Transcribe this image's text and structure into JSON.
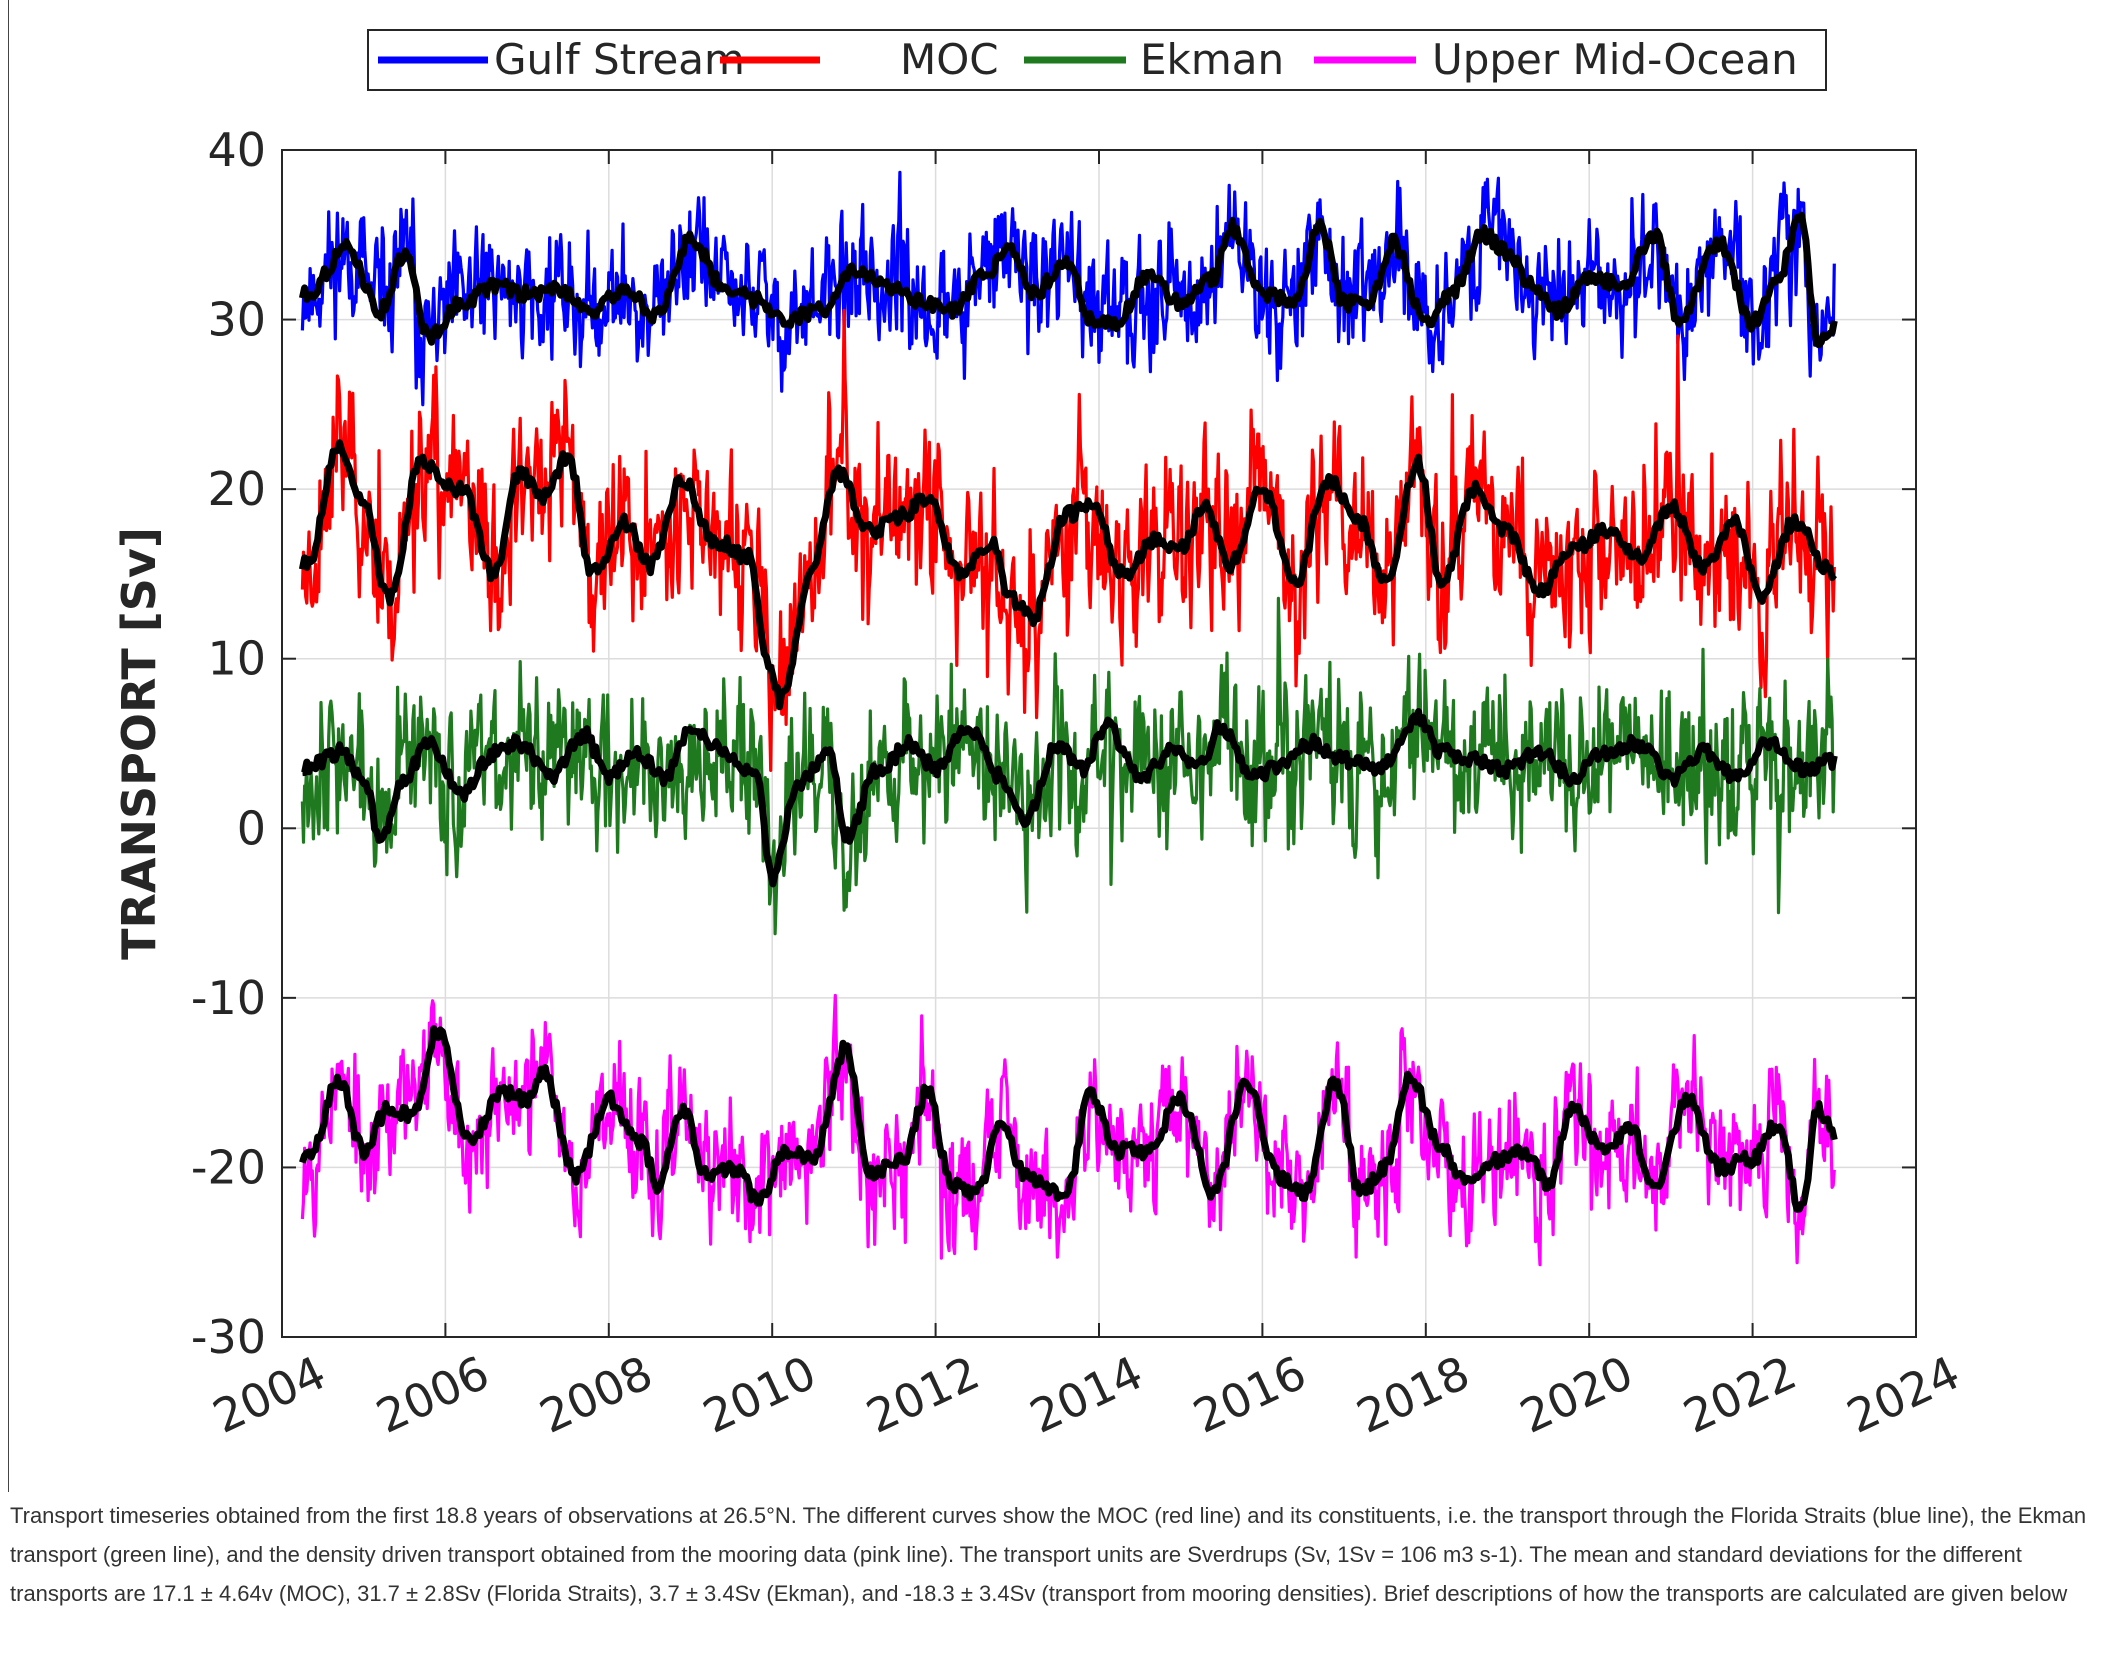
{
  "chart_data": {
    "type": "line",
    "title": "",
    "xlabel": "",
    "ylabel": "TRANSPORT [Sv]",
    "xlim": [
      2004,
      2024
    ],
    "ylim": [
      -30,
      40
    ],
    "xticks": [
      "2004",
      "2006",
      "2008",
      "2010",
      "2012",
      "2014",
      "2016",
      "2018",
      "2020",
      "2022",
      "2024"
    ],
    "yticks": [
      "40",
      "30",
      "20",
      "10",
      "0",
      "-10",
      "-20",
      "-30"
    ],
    "grid": true,
    "legend_position": "top",
    "x_start": 2004.25,
    "x_end": 2023.0,
    "series": [
      {
        "name": "Gulf Stream",
        "color": "#0000ff",
        "noise": 2.6,
        "seed": 11,
        "smooth": [
          [
            2004.3,
            31.5
          ],
          [
            2004.8,
            34.2
          ],
          [
            2005.2,
            30.5
          ],
          [
            2005.5,
            33.8
          ],
          [
            2005.8,
            29.0
          ],
          [
            2006.2,
            31.0
          ],
          [
            2006.6,
            32.0
          ],
          [
            2007.0,
            31.5
          ],
          [
            2007.4,
            31.8
          ],
          [
            2007.8,
            30.5
          ],
          [
            2008.2,
            31.8
          ],
          [
            2008.6,
            30.2
          ],
          [
            2009.0,
            34.8
          ],
          [
            2009.4,
            32.0
          ],
          [
            2009.8,
            31.2
          ],
          [
            2010.2,
            30.0
          ],
          [
            2010.6,
            30.6
          ],
          [
            2011.0,
            32.8
          ],
          [
            2011.4,
            32.0
          ],
          [
            2011.8,
            31.0
          ],
          [
            2012.2,
            30.5
          ],
          [
            2012.6,
            32.5
          ],
          [
            2012.9,
            34.5
          ],
          [
            2013.2,
            31.5
          ],
          [
            2013.6,
            33.5
          ],
          [
            2013.9,
            30.0
          ],
          [
            2014.2,
            29.8
          ],
          [
            2014.6,
            32.5
          ],
          [
            2015.0,
            31.0
          ],
          [
            2015.4,
            32.5
          ],
          [
            2015.6,
            35.5
          ],
          [
            2016.0,
            31.5
          ],
          [
            2016.4,
            31.2
          ],
          [
            2016.7,
            35.5
          ],
          [
            2017.0,
            31.0
          ],
          [
            2017.3,
            30.8
          ],
          [
            2017.6,
            34.5
          ],
          [
            2018.0,
            29.8
          ],
          [
            2018.3,
            31.5
          ],
          [
            2018.7,
            35.0
          ],
          [
            2019.0,
            34.0
          ],
          [
            2019.3,
            32.0
          ],
          [
            2019.6,
            30.5
          ],
          [
            2020.0,
            32.5
          ],
          [
            2020.4,
            32.0
          ],
          [
            2020.8,
            35.0
          ],
          [
            2021.1,
            30.0
          ],
          [
            2021.6,
            34.5
          ],
          [
            2022.0,
            29.8
          ],
          [
            2022.3,
            32.5
          ],
          [
            2022.6,
            36.0
          ],
          [
            2022.8,
            28.5
          ],
          [
            2023.0,
            29.5
          ]
        ]
      },
      {
        "name": "MOC",
        "color": "#ff0000",
        "noise": 3.4,
        "seed": 23,
        "smooth": [
          [
            2004.3,
            15.5
          ],
          [
            2004.7,
            22.5
          ],
          [
            2005.0,
            19.0
          ],
          [
            2005.3,
            13.5
          ],
          [
            2005.7,
            21.5
          ],
          [
            2006.2,
            20.0
          ],
          [
            2006.6,
            15.0
          ],
          [
            2006.9,
            21.0
          ],
          [
            2007.2,
            19.5
          ],
          [
            2007.5,
            22.0
          ],
          [
            2007.8,
            15.0
          ],
          [
            2008.2,
            18.0
          ],
          [
            2008.5,
            15.5
          ],
          [
            2008.9,
            20.5
          ],
          [
            2009.3,
            17.0
          ],
          [
            2009.7,
            16.0
          ],
          [
            2010.0,
            9.0
          ],
          [
            2010.1,
            7.5
          ],
          [
            2010.5,
            15.5
          ],
          [
            2010.8,
            21.0
          ],
          [
            2011.2,
            17.5
          ],
          [
            2011.6,
            18.5
          ],
          [
            2011.9,
            19.5
          ],
          [
            2012.3,
            15.0
          ],
          [
            2012.7,
            17.0
          ],
          [
            2012.9,
            13.5
          ],
          [
            2013.2,
            12.5
          ],
          [
            2013.6,
            18.5
          ],
          [
            2013.9,
            19.0
          ],
          [
            2014.3,
            15.0
          ],
          [
            2014.7,
            17.0
          ],
          [
            2015.0,
            16.5
          ],
          [
            2015.3,
            19.0
          ],
          [
            2015.6,
            15.5
          ],
          [
            2016.0,
            20.0
          ],
          [
            2016.4,
            14.5
          ],
          [
            2016.8,
            20.5
          ],
          [
            2017.2,
            18.0
          ],
          [
            2017.5,
            14.5
          ],
          [
            2017.9,
            21.5
          ],
          [
            2018.2,
            14.5
          ],
          [
            2018.6,
            20.0
          ],
          [
            2019.0,
            17.5
          ],
          [
            2019.4,
            14.0
          ],
          [
            2019.8,
            16.5
          ],
          [
            2020.2,
            17.5
          ],
          [
            2020.6,
            16.0
          ],
          [
            2021.0,
            19.0
          ],
          [
            2021.4,
            15.5
          ],
          [
            2021.8,
            18.0
          ],
          [
            2022.1,
            13.5
          ],
          [
            2022.5,
            18.0
          ],
          [
            2023.0,
            15.0
          ]
        ]
      },
      {
        "name": "Ekman",
        "color": "#1f7a1f",
        "noise": 3.2,
        "seed": 37,
        "smooth": [
          [
            2004.3,
            3.5
          ],
          [
            2004.7,
            4.5
          ],
          [
            2005.0,
            3.0
          ],
          [
            2005.2,
            -0.5
          ],
          [
            2005.5,
            3.0
          ],
          [
            2005.8,
            5.0
          ],
          [
            2006.2,
            2.0
          ],
          [
            2006.6,
            4.5
          ],
          [
            2006.9,
            5.0
          ],
          [
            2007.3,
            3.0
          ],
          [
            2007.7,
            5.5
          ],
          [
            2008.0,
            3.0
          ],
          [
            2008.3,
            4.5
          ],
          [
            2008.7,
            3.0
          ],
          [
            2009.0,
            6.0
          ],
          [
            2009.4,
            4.5
          ],
          [
            2009.8,
            3.0
          ],
          [
            2010.0,
            -3.0
          ],
          [
            2010.3,
            2.5
          ],
          [
            2010.7,
            4.5
          ],
          [
            2010.9,
            -0.5
          ],
          [
            2011.3,
            3.5
          ],
          [
            2011.7,
            5.0
          ],
          [
            2012.0,
            3.5
          ],
          [
            2012.4,
            6.0
          ],
          [
            2012.8,
            3.0
          ],
          [
            2013.1,
            0.5
          ],
          [
            2013.5,
            5.0
          ],
          [
            2013.8,
            3.5
          ],
          [
            2014.1,
            6.0
          ],
          [
            2014.5,
            3.0
          ],
          [
            2014.9,
            4.5
          ],
          [
            2015.2,
            3.5
          ],
          [
            2015.5,
            6.0
          ],
          [
            2015.9,
            3.0
          ],
          [
            2016.3,
            4.0
          ],
          [
            2016.6,
            5.0
          ],
          [
            2017.0,
            4.0
          ],
          [
            2017.4,
            3.5
          ],
          [
            2017.9,
            6.5
          ],
          [
            2018.2,
            4.5
          ],
          [
            2018.6,
            4.0
          ],
          [
            2019.0,
            3.5
          ],
          [
            2019.4,
            4.5
          ],
          [
            2019.8,
            3.0
          ],
          [
            2020.2,
            4.5
          ],
          [
            2020.6,
            5.0
          ],
          [
            2021.0,
            3.0
          ],
          [
            2021.4,
            4.5
          ],
          [
            2021.8,
            3.0
          ],
          [
            2022.2,
            5.0
          ],
          [
            2022.6,
            3.5
          ],
          [
            2023.0,
            4.0
          ]
        ]
      },
      {
        "name": "Upper Mid-Ocean",
        "color": "#ff00ff",
        "noise": 2.6,
        "seed": 53,
        "smooth": [
          [
            2004.3,
            -19.5
          ],
          [
            2004.7,
            -15.0
          ],
          [
            2005.0,
            -19.0
          ],
          [
            2005.3,
            -16.5
          ],
          [
            2005.6,
            -17.0
          ],
          [
            2005.9,
            -12.0
          ],
          [
            2006.3,
            -18.5
          ],
          [
            2006.7,
            -15.5
          ],
          [
            2007.0,
            -16.0
          ],
          [
            2007.2,
            -14.5
          ],
          [
            2007.6,
            -20.5
          ],
          [
            2008.0,
            -16.0
          ],
          [
            2008.4,
            -18.5
          ],
          [
            2008.6,
            -21.0
          ],
          [
            2008.9,
            -16.5
          ],
          [
            2009.2,
            -20.5
          ],
          [
            2009.6,
            -20.0
          ],
          [
            2009.8,
            -22.0
          ],
          [
            2010.2,
            -19.0
          ],
          [
            2010.5,
            -19.5
          ],
          [
            2010.9,
            -13.0
          ],
          [
            2011.2,
            -20.5
          ],
          [
            2011.6,
            -19.5
          ],
          [
            2011.9,
            -15.5
          ],
          [
            2012.2,
            -21.0
          ],
          [
            2012.5,
            -21.5
          ],
          [
            2012.8,
            -17.5
          ],
          [
            2013.1,
            -20.5
          ],
          [
            2013.6,
            -21.5
          ],
          [
            2013.9,
            -15.5
          ],
          [
            2014.2,
            -19.0
          ],
          [
            2014.6,
            -19.0
          ],
          [
            2015.0,
            -16.0
          ],
          [
            2015.4,
            -21.5
          ],
          [
            2015.8,
            -15.0
          ],
          [
            2016.2,
            -20.5
          ],
          [
            2016.5,
            -21.5
          ],
          [
            2016.9,
            -15.0
          ],
          [
            2017.2,
            -21.5
          ],
          [
            2017.5,
            -20.0
          ],
          [
            2017.8,
            -14.5
          ],
          [
            2018.2,
            -19.0
          ],
          [
            2018.5,
            -21.0
          ],
          [
            2018.9,
            -19.5
          ],
          [
            2019.2,
            -19.0
          ],
          [
            2019.5,
            -21.0
          ],
          [
            2019.8,
            -16.5
          ],
          [
            2020.2,
            -19.0
          ],
          [
            2020.5,
            -17.5
          ],
          [
            2020.8,
            -21.5
          ],
          [
            2021.2,
            -16.0
          ],
          [
            2021.6,
            -20.0
          ],
          [
            2022.0,
            -19.5
          ],
          [
            2022.3,
            -17.5
          ],
          [
            2022.6,
            -22.5
          ],
          [
            2022.8,
            -16.5
          ],
          [
            2023.0,
            -18.0
          ]
        ]
      }
    ]
  },
  "caption": {
    "text": "Transport timeseries obtained from the first 18.8 years of observations at 26.5°N. The different curves show the MOC (red line) and its constituents, i.e. the transport through the Florida Straits (blue line), the Ekman transport (green line), and the density driven transport obtained from the mooring data (pink line). The transport units are Sverdrups (Sv, 1Sv = 106 m3 s-1). The mean and standard deviations for the different transports are 17.1 ± 4.64v (MOC), 31.7 ± 2.8Sv (Florida Straits), 3.7 ± 3.4Sv (Ekman), and -18.3 ± 3.4Sv (transport from mooring densities). Brief descriptions of how the transports are calculated are given below"
  }
}
